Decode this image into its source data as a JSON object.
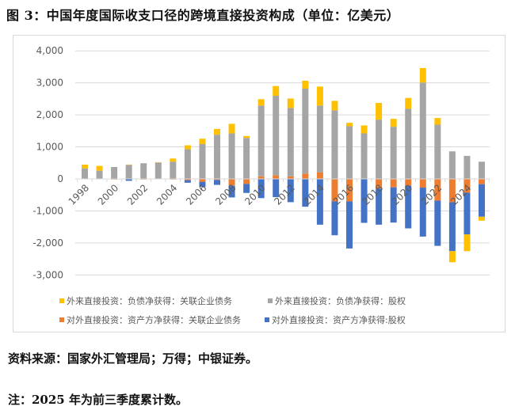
{
  "title": "图 3：中国年度国际收支口径的跨境直接投资构成（单位：亿美元）",
  "source": "资料来源：国家外汇管理局；万得；中银证券。",
  "footnote": "注：2025 年为前三季度累计数。",
  "chart_data": {
    "type": "bar",
    "stacked": true,
    "title": "",
    "xlabel": "",
    "ylabel": "",
    "ylim": [
      -3000,
      4000
    ],
    "yticks": [
      "4,000",
      "3,000",
      "2,000",
      "1,000",
      "0",
      "-1,000",
      "-2,000",
      "-3,000"
    ],
    "ytick_values": [
      4000,
      3000,
      2000,
      1000,
      0,
      -1000,
      -2000,
      -3000
    ],
    "grid": true,
    "legend_position": "bottom",
    "categories": [
      "1998",
      "1999",
      "2000",
      "2001",
      "2002",
      "2003",
      "2004",
      "2005",
      "2006",
      "2007",
      "2008",
      "2009",
      "2010",
      "2011",
      "2012",
      "2013",
      "2014",
      "2015",
      "2016",
      "2017",
      "2018",
      "2019",
      "2020",
      "2021",
      "2022",
      "2023",
      "2024",
      "2025"
    ],
    "xtick_labels": [
      "1998",
      "2000",
      "2002",
      "2004",
      "2006",
      "2008",
      "2010",
      "2012",
      "2014",
      "2016",
      "2018",
      "2020",
      "2022",
      "2024"
    ],
    "series": [
      {
        "name": "对外直接投资：资产方净获得：关联企业债务",
        "color": "#ed7d31",
        "values": [
          0,
          0,
          -20,
          0,
          -20,
          0,
          -20,
          -40,
          -90,
          -30,
          -215,
          -157,
          80,
          115,
          80,
          165,
          207,
          -702,
          -702,
          0,
          -306,
          -264,
          -214,
          -273,
          -678,
          -727,
          -430,
          -165
        ]
      },
      {
        "name": "对外直接投资：资产方净获得:股权",
        "color": "#4472c4",
        "values": [
          0,
          0,
          0,
          -60,
          0,
          0,
          0,
          -80,
          -157,
          -157,
          -364,
          -281,
          -600,
          -570,
          -727,
          -868,
          -1430,
          -1058,
          -1471,
          -1372,
          -1124,
          -1100,
          -1331,
          -1529,
          -1413,
          -1529,
          -1306,
          -1017
        ]
      },
      {
        "name": "外来直接投资：负债净获得：股权",
        "color": "#a5a5a5",
        "values": [
          330,
          256,
          372,
          438,
          488,
          512,
          537,
          925,
          1090,
          1380,
          1420,
          1280,
          2210,
          2480,
          2135,
          2653,
          2083,
          2140,
          1645,
          1421,
          1851,
          1628,
          2190,
          3008,
          1694,
          860,
          719,
          537
        ]
      },
      {
        "name": "外来直接投资：负债净获得：关联企业债务",
        "color": "#ffc000",
        "values": [
          115,
          150,
          0,
          10,
          0,
          10,
          100,
          125,
          165,
          180,
          300,
          60,
          200,
          305,
          295,
          248,
          594,
          298,
          107,
          248,
          521,
          248,
          339,
          455,
          207,
          -347,
          -520,
          -124
        ]
      }
    ],
    "legend_order": [
      3,
      2,
      0,
      1
    ]
  }
}
